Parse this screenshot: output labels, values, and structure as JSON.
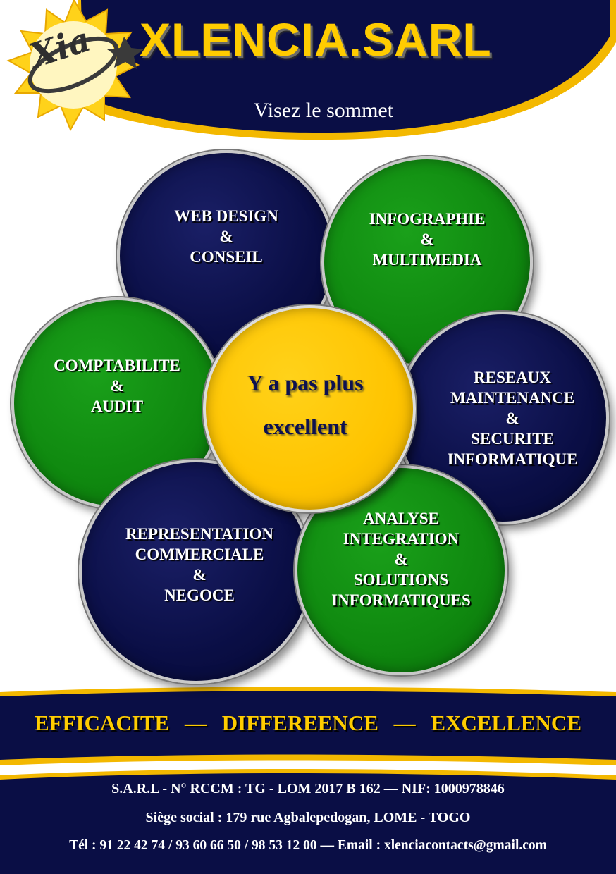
{
  "header": {
    "logo_text": "Xia",
    "brand_name": "XLENCIA.SARL",
    "tagline": "Visez le sommet"
  },
  "services": [
    {
      "id": "web-design",
      "color": "navy",
      "lines": [
        "WEB  DESIGN",
        "&",
        "CONSEIL"
      ]
    },
    {
      "id": "infographie",
      "color": "green",
      "lines": [
        "INFOGRAPHIE",
        "&",
        "MULTIMEDIA"
      ]
    },
    {
      "id": "comptabilite",
      "color": "green",
      "lines": [
        "COMPTABILITE",
        "&",
        "AUDIT"
      ]
    },
    {
      "id": "reseaux",
      "color": "navy",
      "lines": [
        "RESEAUX",
        "MAINTENANCE",
        "&",
        "SECURITE",
        "INFORMATIQUE"
      ]
    },
    {
      "id": "representation",
      "color": "navy",
      "lines": [
        "REPRESENTATION",
        "COMMERCIALE",
        "&",
        "NEGOCE"
      ]
    },
    {
      "id": "analyse",
      "color": "green",
      "lines": [
        "ANALYSE",
        "INTEGRATION",
        "&",
        "SOLUTIONS",
        "INFORMATIQUES"
      ]
    }
  ],
  "center": {
    "lines": [
      "Y a pas plus",
      "excellent"
    ]
  },
  "motto": {
    "word1": "EFFICACITE",
    "separator": "—",
    "word2": "DIFFEREENCE",
    "word3": "EXCELLENCE"
  },
  "footer": {
    "legal": "S.A.R.L -  N° RCCM : TG -  LOM 2017 B 162  —  NIF: 1000978846",
    "address": "Siège social : 179 rue Agbalepedogan, LOME -  TOGO",
    "contact": "Tél : 91 22 42 74  /  93 60 66  50  /  98 53 12 00   —    Email : xlenciacontacts@gmail.com"
  },
  "colors": {
    "navy": "#0a0e45",
    "gold": "#ffcc00",
    "green": "#0f880f",
    "white": "#ffffff"
  }
}
